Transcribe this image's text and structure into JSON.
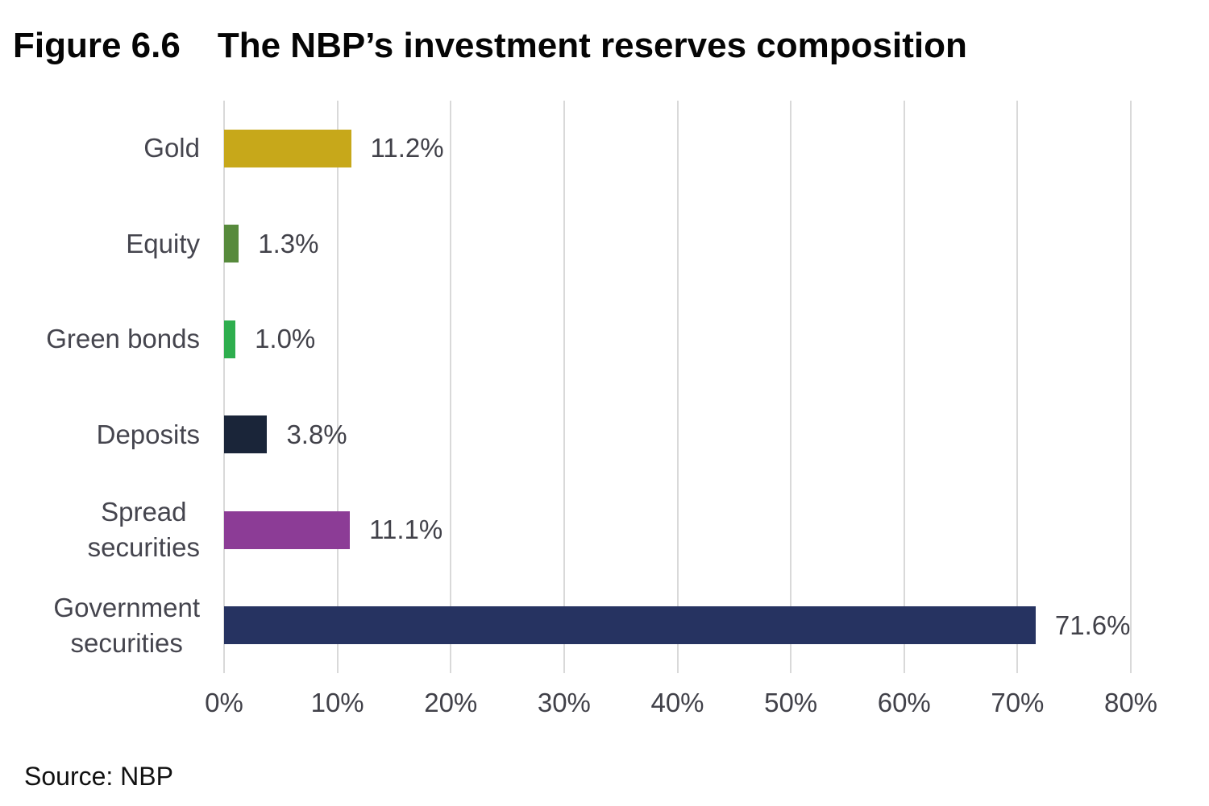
{
  "header": {
    "figure_label": "Figure 6.6",
    "title_text": "The NBP’s investment reserves composition"
  },
  "source": "Source: NBP",
  "chart_data": {
    "type": "bar",
    "orientation": "horizontal",
    "title": "The NBP’s investment reserves composition",
    "xlabel": "",
    "ylabel": "",
    "categories": [
      "Gold",
      "Equity",
      "Green bonds",
      "Deposits",
      "Spread\nsecurities",
      "Government\nsecurities"
    ],
    "values": [
      11.2,
      1.3,
      1.0,
      3.8,
      11.1,
      71.6
    ],
    "value_labels": [
      "11.2%",
      "1.3%",
      "1.0%",
      "3.8%",
      "11.1%",
      "71.6%"
    ],
    "bar_colors": [
      "#C7A81A",
      "#578A3C",
      "#2EAE4E",
      "#1A2539",
      "#8C3C96",
      "#263361"
    ],
    "x_tick_labels": [
      "0%",
      "10%",
      "20%",
      "30%",
      "40%",
      "50%",
      "60%",
      "70%",
      "80%"
    ],
    "x_tick_values": [
      0,
      10,
      20,
      30,
      40,
      50,
      60,
      70,
      80
    ],
    "xlim": [
      0,
      80
    ],
    "grid": "vertical",
    "gridline_color": "#D9D9D9",
    "label_color": "#45454e",
    "legend": "none"
  }
}
